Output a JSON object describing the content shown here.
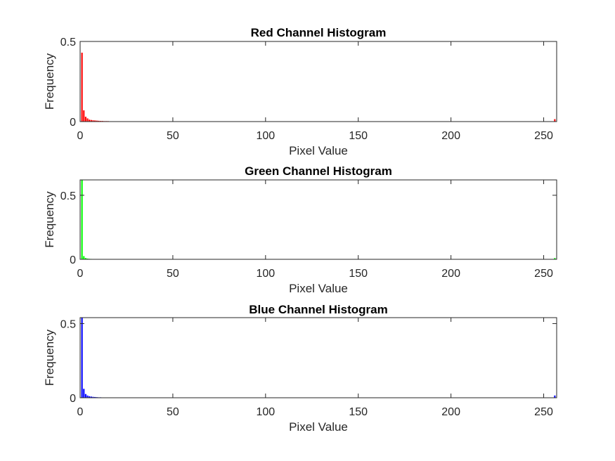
{
  "chart_data": [
    {
      "type": "bar",
      "title": "Red Channel Histogram",
      "xlabel": "Pixel Value",
      "ylabel": "Frequency",
      "xlim": [
        0,
        257
      ],
      "ylim": [
        0,
        0.5
      ],
      "xticks": [
        0,
        50,
        100,
        150,
        200,
        250
      ],
      "yticks": [
        0,
        0.5
      ],
      "color": "#ff0000",
      "x": [
        1,
        2,
        3,
        4,
        5,
        6,
        7,
        8,
        9,
        10,
        11,
        12,
        13,
        14,
        15,
        16,
        17,
        18,
        19,
        20,
        256
      ],
      "values": [
        0.43,
        0.07,
        0.03,
        0.02,
        0.012,
        0.01,
        0.008,
        0.007,
        0.006,
        0.005,
        0.004,
        0.004,
        0.003,
        0.003,
        0.003,
        0.002,
        0.002,
        0.002,
        0.002,
        0.002,
        0.015
      ],
      "grid": false
    },
    {
      "type": "bar",
      "title": "Green Channel Histogram",
      "xlabel": "Pixel Value",
      "ylabel": "Frequency",
      "xlim": [
        0,
        257
      ],
      "ylim": [
        0,
        0.62
      ],
      "xticks": [
        0,
        50,
        100,
        150,
        200,
        250
      ],
      "yticks": [
        0,
        0.5
      ],
      "color": "#00ff00",
      "x": [
        1,
        2,
        3,
        4,
        5,
        6,
        7,
        8,
        9,
        10,
        256
      ],
      "values": [
        0.62,
        0.025,
        0.01,
        0.006,
        0.004,
        0.003,
        0.002,
        0.002,
        0.001,
        0.001,
        0.01
      ],
      "grid": false
    },
    {
      "type": "bar",
      "title": "Blue Channel Histogram",
      "xlabel": "Pixel Value",
      "ylabel": "Frequency",
      "xlim": [
        0,
        257
      ],
      "ylim": [
        0,
        0.54
      ],
      "xticks": [
        0,
        50,
        100,
        150,
        200,
        250
      ],
      "yticks": [
        0,
        0.5
      ],
      "color": "#0000ff",
      "x": [
        1,
        2,
        3,
        4,
        5,
        6,
        7,
        8,
        9,
        10,
        11,
        12,
        13,
        14,
        15,
        256
      ],
      "values": [
        0.54,
        0.06,
        0.025,
        0.015,
        0.01,
        0.008,
        0.006,
        0.005,
        0.004,
        0.003,
        0.003,
        0.002,
        0.002,
        0.002,
        0.002,
        0.015
      ],
      "grid": false
    }
  ]
}
